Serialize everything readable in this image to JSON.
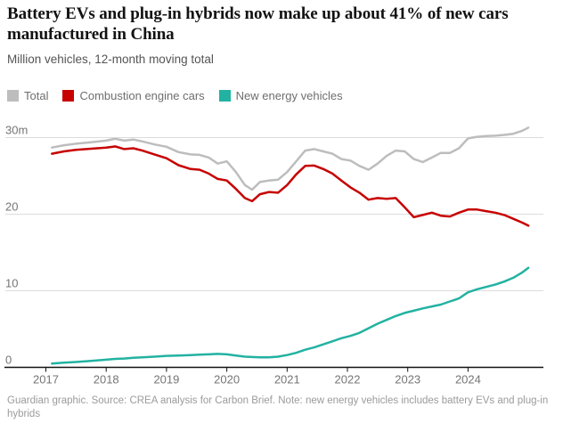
{
  "colors": {
    "title": "#121212",
    "subtitle": "#545454",
    "axis": "#121212",
    "gridline": "#dcdcdc",
    "tick_label": "#757575",
    "footer": "#9b9b9b"
  },
  "footer": {
    "note": "Guardian graphic. Source: CREA analysis for Carbon Brief. Note: new energy vehicles includes battery EVs and plug-in hybrids"
  },
  "chart_data": {
    "type": "line",
    "title": "Battery EVs and plug-in hybrids now make up about 41% of new cars manufactured in China",
    "subtitle": "Million vehicles, 12-month moving total",
    "xlabel": "",
    "ylabel": "Million vehicles",
    "grid": true,
    "legend_position": "top-left",
    "xlim": [
      2016.4,
      2025.35
    ],
    "ylim": [
      0,
      31.8
    ],
    "yticks": [
      {
        "value": 30,
        "label": "30m"
      },
      {
        "value": 20,
        "label": "20"
      },
      {
        "value": 10,
        "label": "10"
      },
      {
        "value": 0,
        "label": "0"
      }
    ],
    "xticks": [
      {
        "value": 2017,
        "label": "2017"
      },
      {
        "value": 2018,
        "label": "2018"
      },
      {
        "value": 2019,
        "label": "2019"
      },
      {
        "value": 2020,
        "label": "2020"
      },
      {
        "value": 2021,
        "label": "2021"
      },
      {
        "value": 2022,
        "label": "2022"
      },
      {
        "value": 2023,
        "label": "2023"
      },
      {
        "value": 2024,
        "label": "2024"
      }
    ],
    "x": [
      2017.1,
      2017.3,
      2017.5,
      2017.75,
      2018.0,
      2018.15,
      2018.3,
      2018.45,
      2018.6,
      2018.8,
      2019.0,
      2019.2,
      2019.4,
      2019.55,
      2019.7,
      2019.85,
      2020.0,
      2020.15,
      2020.3,
      2020.42,
      2020.55,
      2020.7,
      2020.85,
      2021.0,
      2021.15,
      2021.3,
      2021.45,
      2021.6,
      2021.75,
      2021.9,
      2022.05,
      2022.2,
      2022.35,
      2022.5,
      2022.65,
      2022.8,
      2022.95,
      2023.1,
      2023.25,
      2023.4,
      2023.55,
      2023.7,
      2023.85,
      2024.0,
      2024.15,
      2024.3,
      2024.45,
      2024.6,
      2024.75,
      2024.9,
      2025.0
    ],
    "series": [
      {
        "name": "Total",
        "color": "#bdbdbd",
        "values": [
          28.7,
          29.0,
          29.2,
          29.4,
          29.6,
          29.85,
          29.6,
          29.75,
          29.5,
          29.1,
          28.8,
          28.1,
          27.8,
          27.75,
          27.4,
          26.6,
          26.9,
          25.5,
          23.8,
          23.2,
          24.2,
          24.4,
          24.5,
          25.5,
          26.9,
          28.3,
          28.5,
          28.2,
          27.9,
          27.2,
          27.0,
          26.3,
          25.8,
          26.6,
          27.6,
          28.3,
          28.2,
          27.2,
          26.8,
          27.4,
          28.0,
          28.0,
          28.6,
          29.9,
          30.1,
          30.2,
          30.25,
          30.35,
          30.5,
          30.9,
          31.3
        ]
      },
      {
        "name": "Combustion engine cars",
        "color": "#c70000",
        "values": [
          27.9,
          28.2,
          28.4,
          28.55,
          28.7,
          28.85,
          28.5,
          28.6,
          28.3,
          27.8,
          27.3,
          26.4,
          25.9,
          25.8,
          25.3,
          24.6,
          24.4,
          23.3,
          22.1,
          21.7,
          22.6,
          22.9,
          22.8,
          23.8,
          25.2,
          26.3,
          26.35,
          25.9,
          25.3,
          24.4,
          23.5,
          22.8,
          21.9,
          22.1,
          22.0,
          22.1,
          20.9,
          19.6,
          19.9,
          20.2,
          19.8,
          19.7,
          20.2,
          20.6,
          20.6,
          20.4,
          20.2,
          19.9,
          19.4,
          18.9,
          18.5
        ]
      },
      {
        "name": "New energy vehicles",
        "color": "#22b2a2",
        "values": [
          0.5,
          0.6,
          0.7,
          0.85,
          1.0,
          1.1,
          1.15,
          1.25,
          1.3,
          1.4,
          1.5,
          1.55,
          1.6,
          1.65,
          1.7,
          1.75,
          1.7,
          1.55,
          1.4,
          1.35,
          1.3,
          1.3,
          1.4,
          1.6,
          1.9,
          2.3,
          2.6,
          3.0,
          3.4,
          3.8,
          4.1,
          4.5,
          5.1,
          5.7,
          6.2,
          6.7,
          7.1,
          7.4,
          7.7,
          7.95,
          8.2,
          8.6,
          9.0,
          9.8,
          10.2,
          10.5,
          10.8,
          11.2,
          11.7,
          12.4,
          13.0
        ]
      }
    ]
  }
}
